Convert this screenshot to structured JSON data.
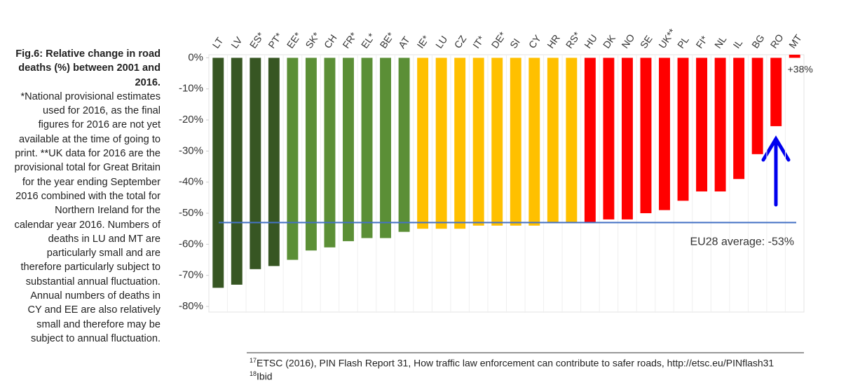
{
  "caption": {
    "title": "Fig.6: Relative change in road deaths (%) between 2001 and 2016.",
    "note": "*National provisional estimates used for 2016, as the final figures for 2016 are not yet available at the time of going to print. **UK data for 2016 are the provisional total for Great Britain for the year ending September 2016 combined with the total for Northern Ireland for the calendar year 2016. Numbers of deaths in LU and MT are particularly small and are therefore particularly subject to substantial annual fluctuation. Annual numbers of deaths in CY and EE are also relatively small and therefore may be subject to annual fluctuation."
  },
  "chart_data": {
    "type": "bar",
    "categories": [
      "LT",
      "LV",
      "ES*",
      "PT*",
      "EE*",
      "SK*",
      "CH",
      "FR*",
      "EL*",
      "BE*",
      "AT",
      "IE*",
      "LU",
      "CZ",
      "IT*",
      "DE*",
      "SI",
      "CY",
      "HR",
      "RS*",
      "HU",
      "DK",
      "NO",
      "SE",
      "UK**",
      "PL",
      "FI*",
      "NL",
      "IL",
      "BG",
      "RO",
      "MT"
    ],
    "values": [
      -74,
      -73,
      -68,
      -67,
      -65,
      -62,
      -61,
      -59,
      -58,
      -58,
      -56,
      -55,
      -55,
      -55,
      -54,
      -54,
      -54,
      -54,
      -53,
      -53,
      -53,
      -52,
      -52,
      -50,
      -49,
      -46,
      -43,
      -43,
      -39,
      -31,
      -22,
      38
    ],
    "value_labels": [
      null,
      null,
      null,
      null,
      null,
      null,
      null,
      null,
      null,
      null,
      null,
      null,
      null,
      null,
      null,
      null,
      null,
      null,
      null,
      null,
      null,
      null,
      null,
      null,
      null,
      null,
      null,
      null,
      null,
      null,
      null,
      "+38%"
    ],
    "colors": [
      "#375623",
      "#375623",
      "#375623",
      "#375623",
      "#5b8f36",
      "#5b8f36",
      "#5b8f36",
      "#5b8f36",
      "#5b8f36",
      "#5b8f36",
      "#5b8f36",
      "#ffc000",
      "#ffc000",
      "#ffc000",
      "#ffc000",
      "#ffc000",
      "#ffc000",
      "#ffc000",
      "#ffc000",
      "#ffc000",
      "#ff0000",
      "#ff0000",
      "#ff0000",
      "#ff0000",
      "#ff0000",
      "#ff0000",
      "#ff0000",
      "#ff0000",
      "#ff0000",
      "#ff0000",
      "#ff0000",
      "#ff0000"
    ],
    "ylim": [
      -80,
      1
    ],
    "yticks": [
      {
        "value": 0,
        "label": "0%"
      },
      {
        "value": -10,
        "label": "-10%"
      },
      {
        "value": -20,
        "label": "-20%"
      },
      {
        "value": -30,
        "label": "-30%"
      },
      {
        "value": -40,
        "label": "-40%"
      },
      {
        "value": -50,
        "label": "-50%"
      },
      {
        "value": -60,
        "label": "-60%"
      },
      {
        "value": -70,
        "label": "-70%"
      },
      {
        "value": -80,
        "label": "-80%"
      }
    ],
    "grid": false,
    "reference_line": {
      "value": -53,
      "label": "EU28 average: -53%",
      "color": "#4472c4"
    }
  },
  "footnotes": [
    {
      "number": "17",
      "text": "ETSC (2016), PIN Flash Report 31, How traffic law enforcement can contribute to safer roads, http://etsc.eu/PINflash31"
    },
    {
      "number": "18",
      "text": "Ibid"
    }
  ]
}
